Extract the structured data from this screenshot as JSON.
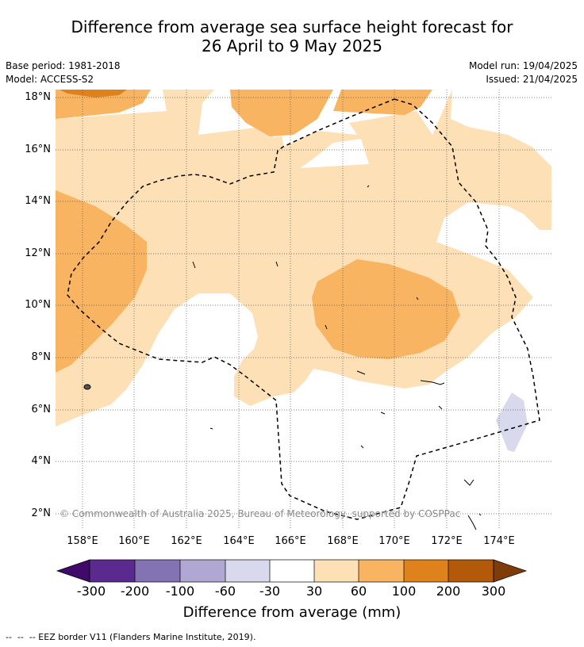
{
  "title": {
    "line1": "Difference from average sea surface height forecast for",
    "line2": "26 April to 9 May 2025"
  },
  "meta": {
    "base_period": "Base period: 1981-2018",
    "model": "Model: ACCESS-S2",
    "model_run": "Model run: 19/04/2025",
    "issued": "Issued: 21/04/2025"
  },
  "map": {
    "lat_labels": [
      "18°N",
      "16°N",
      "14°N",
      "12°N",
      "10°N",
      "8°N",
      "6°N",
      "4°N",
      "2°N"
    ],
    "lon_labels": [
      "158°E",
      "160°E",
      "162°E",
      "164°E",
      "166°E",
      "168°E",
      "170°E",
      "172°E",
      "174°E"
    ],
    "copyright": "© Commonwealth of Australia 2025, Bureau of Meteorology, supported by COSPPac",
    "colors": {
      "b30_60": "#fde0b5",
      "b60_100": "#f8b461",
      "b100_200": "#e0821c",
      "b200_300": "#b3590a",
      "neg30_60": "#d8d9ec",
      "eez_line": "#000000",
      "grid": "#555555"
    }
  },
  "colorbar": {
    "ticks": [
      "-300",
      "-200",
      "-100",
      "-60",
      "-30",
      "30",
      "60",
      "100",
      "200",
      "300"
    ],
    "colors": [
      "#3f0a6a",
      "#5b2a8e",
      "#8473b2",
      "#b0a8d2",
      "#d8d9ec",
      "#ffffff",
      "#fde0b5",
      "#f8b461",
      "#e0821c",
      "#b3590a",
      "#7f3b08"
    ],
    "label": "Difference from average (mm)"
  },
  "footer": "--  --  -- EEZ border V11 (Flanders Marine Institute, 2019)."
}
